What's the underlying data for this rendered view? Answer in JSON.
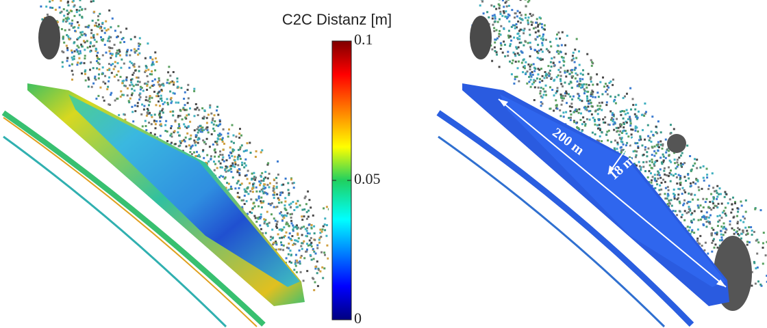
{
  "colorbar": {
    "title": "C2C Distanz [m]",
    "lim": [
      0,
      0.1
    ],
    "ticks": [
      0,
      0.05,
      0.1
    ]
  },
  "annotations": {
    "length": "200 m",
    "width": "18 m"
  }
}
